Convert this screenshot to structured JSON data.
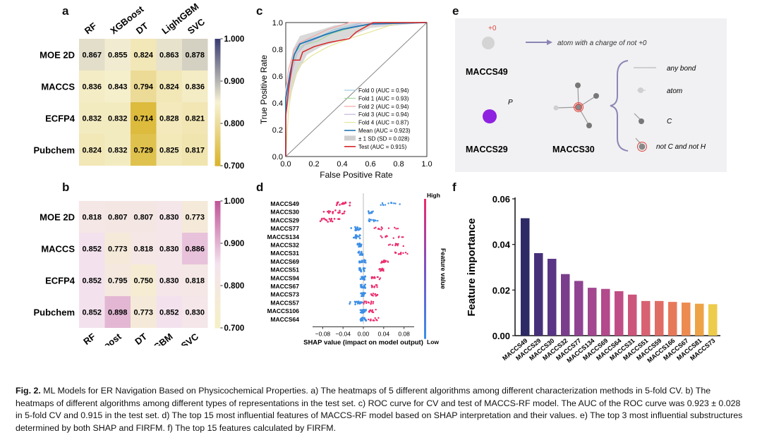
{
  "panels": {
    "a": {
      "letter": "a",
      "cols": [
        "RF",
        "XGBoost",
        "DT",
        "LightGBM",
        "SVC"
      ],
      "rows": [
        "MOE 2D",
        "MACCS",
        "ECFP4",
        "Pubchem"
      ],
      "values": [
        [
          0.867,
          0.855,
          0.824,
          0.863,
          0.878
        ],
        [
          0.836,
          0.843,
          0.794,
          0.824,
          0.836
        ],
        [
          0.832,
          0.832,
          0.714,
          0.828,
          0.821
        ],
        [
          0.824,
          0.832,
          0.729,
          0.825,
          0.817
        ]
      ],
      "colorbar_ticks": [
        "1.000",
        "0.900",
        "0.800",
        "0.700"
      ],
      "colormap": [
        "#d9b52e",
        "#f7f2d4",
        "#3b3f72"
      ]
    },
    "b": {
      "letter": "b",
      "cols": [
        "RF",
        "XGBoost",
        "DT",
        "LightGBM",
        "SVC"
      ],
      "rows": [
        "MOE 2D",
        "MACCS",
        "ECFP4",
        "Pubchem"
      ],
      "values": [
        [
          0.818,
          0.807,
          0.807,
          0.83,
          0.773
        ],
        [
          0.852,
          0.773,
          0.818,
          0.83,
          0.886
        ],
        [
          0.852,
          0.795,
          0.75,
          0.83,
          0.818
        ],
        [
          0.852,
          0.898,
          0.773,
          0.852,
          0.83
        ]
      ],
      "colorbar_ticks": [
        "1.000",
        "0.900",
        "0.800",
        "0.700"
      ],
      "colormap": [
        "#f5f0c6",
        "#f4e4ee",
        "#c0569a"
      ]
    },
    "c": {
      "letter": "c",
      "xlabel": "False Positive Rate",
      "ylabel": "True Positive Rate",
      "ticks": [
        "0.0",
        "0.2",
        "0.4",
        "0.6",
        "0.8",
        "1.0"
      ],
      "legend": [
        {
          "label": "Fold 0 (AUC = 0.94)",
          "color": "#9ecae1"
        },
        {
          "label": "Fold 1 (AUC = 0.93)",
          "color": "#a1d99b"
        },
        {
          "label": "Fold 2 (AUC = 0.94)",
          "color": "#f4a6a6"
        },
        {
          "label": "Fold 3 (AUC = 0.94)",
          "color": "#c4b5e0"
        },
        {
          "label": "Fold 4 (AUC = 0.87)",
          "color": "#e5e59a"
        },
        {
          "label": "Mean (AUC = 0.923)",
          "color": "#1f77b4"
        },
        {
          "label": "± 1 SD (SD = 0.028)",
          "color": "#cfcfcf"
        },
        {
          "label": "Test (AUC = 0.915)",
          "color": "#d62728"
        }
      ]
    },
    "d": {
      "letter": "d",
      "features": [
        "MACCS49",
        "MACCS30",
        "MACCS29",
        "MACCS77",
        "MACCS134",
        "MACCS32",
        "MACCS31",
        "MACCS69",
        "MACCS51",
        "MACCS94",
        "MACCS67",
        "MACCS73",
        "MACCS57",
        "MACCS106",
        "MACCS64"
      ],
      "xticks": [
        "−0.08",
        "−0.04",
        "0.00",
        "0.04",
        "0.08"
      ],
      "xlabel": "SHAP value (impact on model output)",
      "colorbar_label": "Feature value",
      "high": "High",
      "low": "Low"
    },
    "e": {
      "letter": "e",
      "charge": "+0",
      "arrow_text": "atom with a charge of not +0",
      "maccs49": "MACCS49",
      "maccs29": "MACCS29",
      "maccs30": "MACCS30",
      "p_label": "P",
      "legend": [
        "any bond",
        "atom",
        "C",
        "not C and not H"
      ]
    },
    "f": {
      "letter": "f"
    }
  },
  "chart_data": [
    {
      "type": "bar",
      "categories": [
        "MACCS49",
        "MACCS29",
        "MACCS30",
        "MACCS32",
        "MACCS77",
        "MACCS134",
        "MACCS69",
        "MACCS64",
        "MACCS31",
        "MACCS51",
        "MACCS59",
        "MACCS166",
        "MACCS67",
        "MACCS81",
        "MACCS73"
      ],
      "values": [
        0.0515,
        0.0362,
        0.0337,
        0.027,
        0.024,
        0.021,
        0.0205,
        0.0195,
        0.018,
        0.0152,
        0.0152,
        0.0148,
        0.0145,
        0.014,
        0.0138
      ],
      "ylabel": "Feature importance",
      "yticks": [
        "0.00",
        "0.02",
        "0.04",
        "0.06"
      ],
      "ylim": [
        0,
        0.06
      ],
      "colors": [
        "#2d2a66",
        "#47307a",
        "#5a3586",
        "#7a3d8c",
        "#8f4392",
        "#a24790",
        "#b24a8c",
        "#c04e86",
        "#cc557c",
        "#d86272",
        "#e06c66",
        "#e7795b",
        "#ec8a50",
        "#eea247",
        "#edcb4b"
      ]
    }
  ],
  "caption": {
    "label": "Fig. 2.",
    "text": "ML Models for ER Navigation Based on Physicochemical Properties. a) The heatmaps of 5 different algorithms among different characterization methods in 5-fold CV. b) The heatmaps of different algorithms among different types of representations in the test set. c) ROC curve for CV and test of MACCS-RF model. The AUC of the ROC curve was 0.923 ± 0.028 in 5-fold CV and 0.915 in the test set. d) The top 15 most influential features of MACCS-RF model based on SHAP interpretation and their values. e) The top 3 most influential substructures determined by both SHAP and FIRFM. f) The top 15 features calculated by FIRFM."
  }
}
